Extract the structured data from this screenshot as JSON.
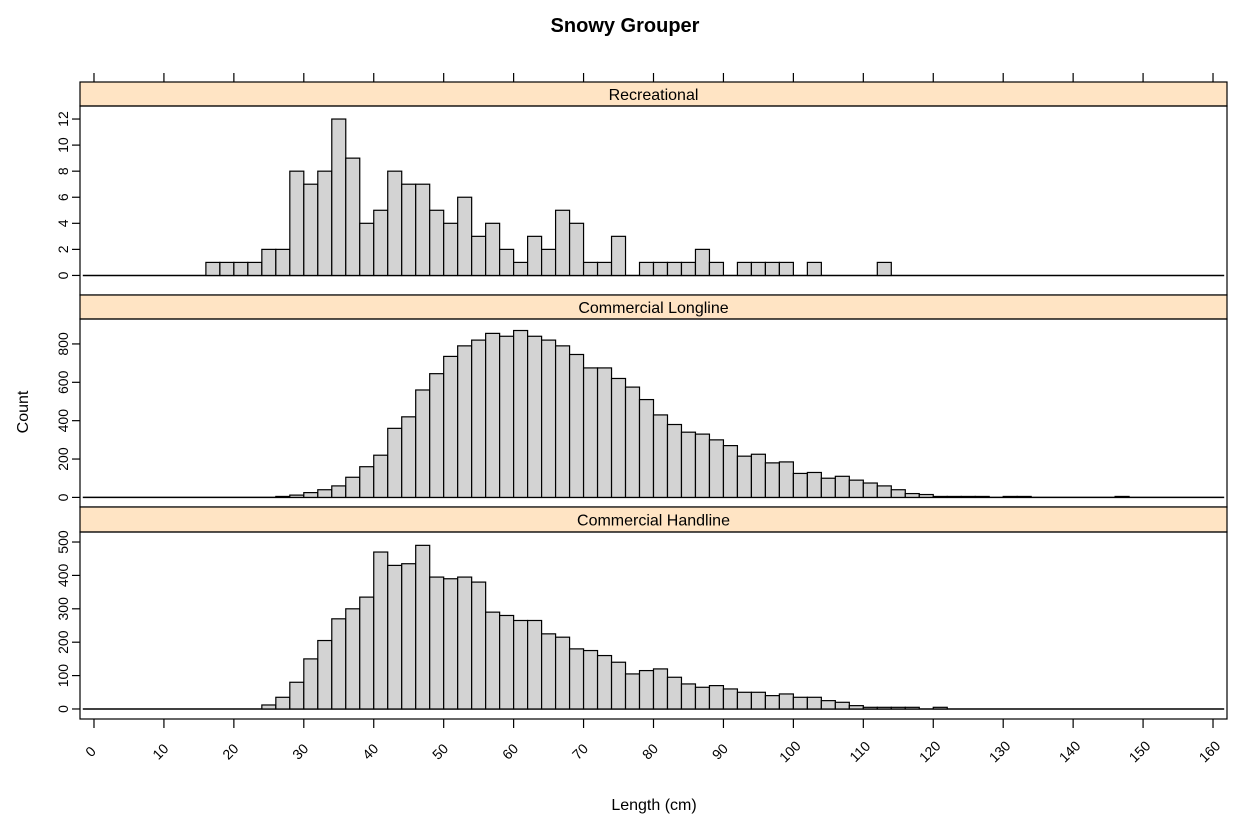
{
  "chart_data": {
    "type": "bar",
    "title": "Snowy Grouper",
    "xlabel": "Length (cm)",
    "ylabel": "Count",
    "xlim": [
      -2,
      162
    ],
    "x_ticks": [
      0,
      10,
      20,
      30,
      40,
      50,
      60,
      70,
      80,
      90,
      100,
      110,
      120,
      130,
      140,
      150,
      160
    ],
    "x_tick_labels": [
      "0",
      "10",
      "20",
      "30",
      "40",
      "50",
      "60",
      "70",
      "80",
      "90",
      "100",
      "110",
      "120",
      "130",
      "140",
      "150",
      "160"
    ],
    "bin_width": 2,
    "strip_color": "#ffe4c4",
    "bar_color": "#d3d3d3",
    "panels": [
      {
        "name": "Recreational",
        "ylim": [
          -1.5,
          13
        ],
        "y_ticks": [
          0,
          2,
          4,
          6,
          8,
          10,
          12
        ],
        "y_tick_labels": [
          "0",
          "2",
          "4",
          "6",
          "8",
          "10",
          "12"
        ],
        "bins": [
          [
            16,
            1
          ],
          [
            18,
            1
          ],
          [
            20,
            1
          ],
          [
            22,
            1
          ],
          [
            24,
            2
          ],
          [
            26,
            2
          ],
          [
            28,
            8
          ],
          [
            30,
            7
          ],
          [
            32,
            8
          ],
          [
            34,
            12
          ],
          [
            36,
            9
          ],
          [
            38,
            4
          ],
          [
            40,
            5
          ],
          [
            42,
            8
          ],
          [
            44,
            7
          ],
          [
            46,
            7
          ],
          [
            48,
            5
          ],
          [
            50,
            4
          ],
          [
            52,
            6
          ],
          [
            54,
            3
          ],
          [
            56,
            4
          ],
          [
            58,
            2
          ],
          [
            60,
            1
          ],
          [
            62,
            3
          ],
          [
            64,
            2
          ],
          [
            66,
            5
          ],
          [
            68,
            4
          ],
          [
            70,
            1
          ],
          [
            72,
            1
          ],
          [
            74,
            3
          ],
          [
            78,
            1
          ],
          [
            80,
            1
          ],
          [
            82,
            1
          ],
          [
            84,
            1
          ],
          [
            86,
            2
          ],
          [
            88,
            1
          ],
          [
            92,
            1
          ],
          [
            94,
            1
          ],
          [
            96,
            1
          ],
          [
            98,
            1
          ],
          [
            102,
            1
          ],
          [
            112,
            1
          ]
        ]
      },
      {
        "name": "Commercial Longline",
        "ylim": [
          -50,
          930
        ],
        "y_ticks": [
          0,
          200,
          400,
          600,
          800
        ],
        "y_tick_labels": [
          "0",
          "200",
          "400",
          "600",
          "800"
        ],
        "bins": [
          [
            26,
            5
          ],
          [
            28,
            12
          ],
          [
            30,
            25
          ],
          [
            32,
            40
          ],
          [
            34,
            60
          ],
          [
            36,
            105
          ],
          [
            38,
            160
          ],
          [
            40,
            220
          ],
          [
            42,
            360
          ],
          [
            44,
            420
          ],
          [
            46,
            560
          ],
          [
            48,
            645
          ],
          [
            50,
            735
          ],
          [
            52,
            790
          ],
          [
            54,
            820
          ],
          [
            56,
            855
          ],
          [
            58,
            840
          ],
          [
            60,
            870
          ],
          [
            62,
            840
          ],
          [
            64,
            820
          ],
          [
            66,
            790
          ],
          [
            68,
            745
          ],
          [
            70,
            675
          ],
          [
            72,
            675
          ],
          [
            74,
            620
          ],
          [
            76,
            575
          ],
          [
            78,
            510
          ],
          [
            80,
            430
          ],
          [
            82,
            380
          ],
          [
            84,
            340
          ],
          [
            86,
            330
          ],
          [
            88,
            300
          ],
          [
            90,
            270
          ],
          [
            92,
            215
          ],
          [
            94,
            225
          ],
          [
            96,
            180
          ],
          [
            98,
            185
          ],
          [
            100,
            125
          ],
          [
            102,
            130
          ],
          [
            104,
            100
          ],
          [
            106,
            110
          ],
          [
            108,
            90
          ],
          [
            110,
            75
          ],
          [
            112,
            60
          ],
          [
            114,
            40
          ],
          [
            116,
            20
          ],
          [
            118,
            15
          ],
          [
            120,
            5
          ],
          [
            122,
            5
          ],
          [
            124,
            5
          ],
          [
            126,
            5
          ],
          [
            130,
            5
          ],
          [
            132,
            5
          ],
          [
            146,
            5
          ]
        ]
      },
      {
        "name": "Commercial Handline",
        "ylim": [
          -30,
          530
        ],
        "y_ticks": [
          0,
          100,
          200,
          300,
          400,
          500
        ],
        "y_tick_labels": [
          "0",
          "100",
          "200",
          "300",
          "400",
          "500"
        ],
        "bins": [
          [
            24,
            12
          ],
          [
            26,
            35
          ],
          [
            28,
            80
          ],
          [
            30,
            150
          ],
          [
            32,
            205
          ],
          [
            34,
            270
          ],
          [
            36,
            300
          ],
          [
            38,
            335
          ],
          [
            40,
            470
          ],
          [
            42,
            430
          ],
          [
            44,
            435
          ],
          [
            46,
            490
          ],
          [
            48,
            395
          ],
          [
            50,
            390
          ],
          [
            52,
            395
          ],
          [
            54,
            380
          ],
          [
            56,
            290
          ],
          [
            58,
            280
          ],
          [
            60,
            265
          ],
          [
            62,
            265
          ],
          [
            64,
            225
          ],
          [
            66,
            215
          ],
          [
            68,
            180
          ],
          [
            70,
            175
          ],
          [
            72,
            160
          ],
          [
            74,
            140
          ],
          [
            76,
            105
          ],
          [
            78,
            115
          ],
          [
            80,
            120
          ],
          [
            82,
            95
          ],
          [
            84,
            75
          ],
          [
            86,
            65
          ],
          [
            88,
            70
          ],
          [
            90,
            60
          ],
          [
            92,
            50
          ],
          [
            94,
            50
          ],
          [
            96,
            40
          ],
          [
            98,
            45
          ],
          [
            100,
            35
          ],
          [
            102,
            35
          ],
          [
            104,
            25
          ],
          [
            106,
            20
          ],
          [
            108,
            10
          ],
          [
            110,
            5
          ],
          [
            112,
            5
          ],
          [
            114,
            5
          ],
          [
            116,
            5
          ],
          [
            120,
            5
          ]
        ]
      }
    ]
  }
}
